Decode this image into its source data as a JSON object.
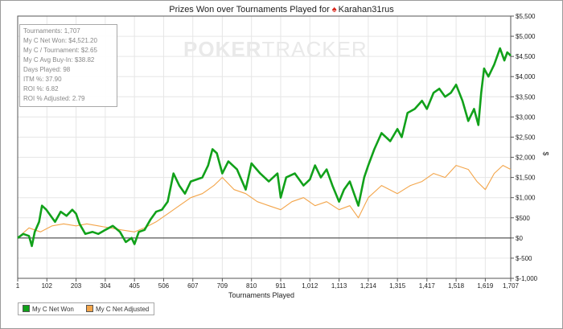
{
  "title": {
    "prefix": "Prizes Won over Tournaments Played for",
    "player": "Karahan31rus",
    "player_icon": "spade-icon"
  },
  "stats": [
    "Tournaments: 1,707",
    "My C Net Won: $4,521.20",
    "My C / Tournament: $2.65",
    "My C Avg Buy-In: $38.82",
    "Days Played: 98",
    "ITM %: 37.90",
    "ROI %: 6.82",
    "ROI % Adjusted: 2.79"
  ],
  "watermark": {
    "bold": "POKER",
    "light": "TRACKER"
  },
  "colors": {
    "net_won": "#11a11a",
    "net_adjusted": "#f3a54a",
    "grid": "#e6e6e6",
    "zero_line": "#333333"
  },
  "chart_data": {
    "type": "line",
    "xlabel": "Tournaments Played",
    "ylabel": "$",
    "xlim": [
      1,
      1707
    ],
    "ylim": [
      -1000,
      5500
    ],
    "x_ticks": [
      1,
      102,
      203,
      304,
      405,
      506,
      607,
      709,
      810,
      911,
      1012,
      1113,
      1214,
      1315,
      1417,
      1518,
      1619,
      1707
    ],
    "x_tick_labels": [
      "1",
      "102",
      "203",
      "304",
      "405",
      "506",
      "607",
      "709",
      "810",
      "911",
      "1,012",
      "1,113",
      "1,214",
      "1,315",
      "1,417",
      "1,518",
      "1,619",
      "1,707"
    ],
    "y_ticks": [
      -1000,
      -500,
      0,
      500,
      1000,
      1500,
      2000,
      2500,
      3000,
      3500,
      4000,
      4500,
      5000,
      5500
    ],
    "y_tick_labels": [
      "$-1,000",
      "$-500",
      "$0",
      "$500",
      "$1,000",
      "$1,500",
      "$2,000",
      "$2,500",
      "$3,000",
      "$3,500",
      "$4,000",
      "$4,500",
      "$5,000",
      "$5,500"
    ],
    "y_axis_side": "right",
    "legend_position": "bottom-left",
    "grid": true,
    "series": [
      {
        "name": "My C Net Won",
        "x": [
          1,
          20,
          40,
          50,
          60,
          75,
          85,
          100,
          130,
          150,
          170,
          190,
          203,
          215,
          235,
          260,
          280,
          304,
          330,
          355,
          375,
          395,
          405,
          420,
          440,
          460,
          480,
          500,
          520,
          540,
          560,
          580,
          600,
          620,
          640,
          660,
          675,
          690,
          709,
          730,
          760,
          790,
          810,
          840,
          870,
          900,
          911,
          930,
          960,
          990,
          1012,
          1030,
          1050,
          1070,
          1090,
          1113,
          1130,
          1150,
          1170,
          1180,
          1200,
          1214,
          1235,
          1260,
          1290,
          1315,
          1330,
          1350,
          1375,
          1400,
          1417,
          1440,
          1460,
          1480,
          1500,
          1518,
          1540,
          1560,
          1580,
          1595,
          1605,
          1615,
          1630,
          1650,
          1670,
          1685,
          1695,
          1707
        ],
        "y": [
          0,
          100,
          50,
          -200,
          150,
          400,
          800,
          700,
          400,
          650,
          550,
          700,
          600,
          350,
          100,
          150,
          100,
          200,
          300,
          150,
          -100,
          0,
          -150,
          150,
          200,
          450,
          650,
          700,
          900,
          1600,
          1300,
          1100,
          1400,
          1450,
          1500,
          1800,
          2200,
          2100,
          1600,
          1900,
          1700,
          1200,
          1850,
          1600,
          1400,
          1600,
          1000,
          1500,
          1600,
          1300,
          1450,
          1800,
          1500,
          1700,
          1300,
          900,
          1200,
          1400,
          1000,
          800,
          1500,
          1800,
          2200,
          2600,
          2400,
          2700,
          2500,
          3100,
          3200,
          3400,
          3200,
          3600,
          3700,
          3500,
          3600,
          3800,
          3400,
          2900,
          3200,
          2800,
          3600,
          4200,
          4000,
          4300,
          4700,
          4400,
          4600,
          4520
        ]
      },
      {
        "name": "My C Net Adjusted",
        "x": [
          1,
          40,
          80,
          120,
          160,
          203,
          240,
          280,
          320,
          360,
          405,
          440,
          480,
          520,
          560,
          600,
          640,
          680,
          709,
          750,
          790,
          830,
          870,
          911,
          950,
          990,
          1030,
          1070,
          1113,
          1150,
          1180,
          1214,
          1260,
          1315,
          1360,
          1400,
          1440,
          1480,
          1518,
          1560,
          1590,
          1619,
          1650,
          1680,
          1707
        ],
        "y": [
          0,
          250,
          150,
          300,
          350,
          300,
          350,
          300,
          250,
          200,
          150,
          250,
          400,
          600,
          800,
          1000,
          1100,
          1300,
          1500,
          1200,
          1100,
          900,
          800,
          700,
          900,
          1000,
          800,
          900,
          700,
          800,
          500,
          1000,
          1300,
          1100,
          1300,
          1400,
          1600,
          1500,
          1800,
          1700,
          1400,
          1200,
          1600,
          1800,
          1700
        ]
      }
    ]
  }
}
